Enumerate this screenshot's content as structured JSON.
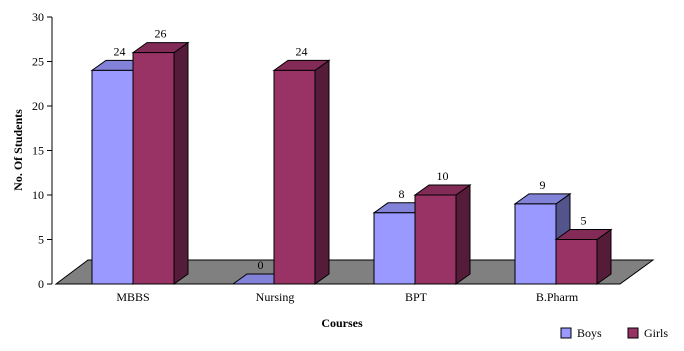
{
  "chart_data": {
    "type": "bar",
    "categories": [
      "MBBS",
      "Nursing",
      "BPT",
      "B.Pharm"
    ],
    "series": [
      {
        "name": "Boys",
        "values": [
          24,
          0,
          8,
          9
        ],
        "color": "#9999ff"
      },
      {
        "name": "Girls",
        "values": [
          26,
          24,
          10,
          5
        ],
        "color": "#993366"
      }
    ],
    "xlabel": "Courses",
    "ylabel": "No. Of Students",
    "ylim": [
      0,
      30
    ],
    "yticks": [
      0,
      5,
      10,
      15,
      20,
      25,
      30
    ],
    "legend_position": "bottom-right",
    "floor_color": "#808080",
    "style": "3d-clustered"
  }
}
